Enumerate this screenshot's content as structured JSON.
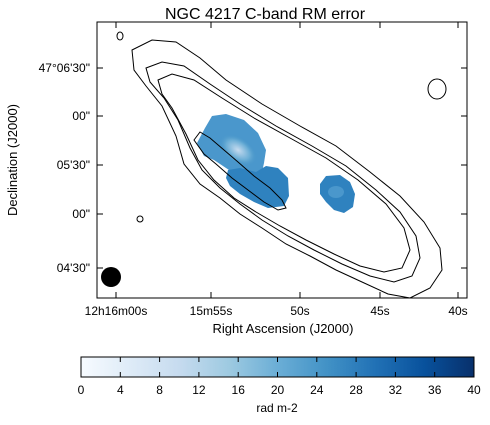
{
  "chart_data": {
    "type": "heatmap",
    "title": "NGC 4217   C-band   RM error",
    "xlabel": "Right Ascension (J2000)",
    "ylabel": "Declination (J2000)",
    "x_ticks": [
      "12h16m00s",
      "15m55s",
      "50s",
      "45s",
      "40s"
    ],
    "y_ticks": [
      "47°06'30\"",
      "00\"",
      "05'30\"",
      "00\"",
      "04'30\""
    ],
    "colorbar": {
      "label": "rad m-2",
      "min": 0,
      "max": 40,
      "ticks": [
        "0",
        "4",
        "8",
        "12",
        "16",
        "20",
        "24",
        "28",
        "32",
        "36",
        "40"
      ],
      "colors": [
        "#f7fbff",
        "#deebf7",
        "#c6dbef",
        "#9ecae1",
        "#6baed6",
        "#4292c6",
        "#2171b5",
        "#08519c",
        "#08306b"
      ]
    },
    "regions": [
      {
        "name": "main",
        "value": 16
      },
      {
        "name": "main-core",
        "value": 10
      },
      {
        "name": "south-lobe",
        "value": 22
      },
      {
        "name": "east-blob",
        "value": 22
      }
    ],
    "contour_levels": 4,
    "beam": "filled black circle, lower-left"
  }
}
